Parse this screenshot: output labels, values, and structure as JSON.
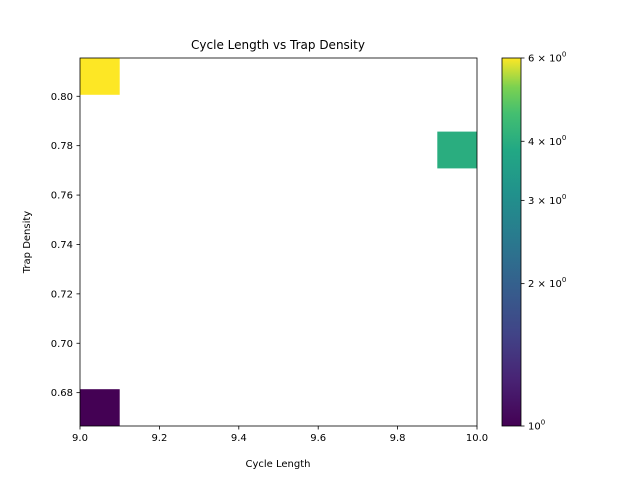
{
  "chart_data": {
    "type": "heatmap",
    "title": "Cycle Length vs Trap Density",
    "xlabel": "Cycle Length",
    "ylabel": "Trap Density",
    "xlim": [
      9.0,
      10.0
    ],
    "ylim": [
      0.6665,
      0.8155
    ],
    "x_ticks": [
      9.0,
      9.2,
      9.4,
      9.6,
      9.8,
      10.0
    ],
    "y_ticks": [
      0.68,
      0.7,
      0.72,
      0.74,
      0.76,
      0.78,
      0.8
    ],
    "x_tick_labels": [
      "9.0",
      "9.2",
      "9.4",
      "9.6",
      "9.8",
      "10.0"
    ],
    "y_tick_labels": [
      "0.68",
      "0.70",
      "0.72",
      "0.74",
      "0.76",
      "0.78",
      "0.80"
    ],
    "bin_width": 0.1,
    "bin_height": 0.0149,
    "cells": [
      {
        "x": 9.0,
        "y": 0.6665,
        "count": 1
      },
      {
        "x": 9.9,
        "y": 0.7708,
        "count": 4
      },
      {
        "x": 9.0,
        "y": 0.8006,
        "count": 6
      }
    ],
    "colorbar": {
      "scale": "log",
      "min": 1,
      "max": 6,
      "colormap": "viridis",
      "ticks": [
        {
          "value": 1,
          "base": "10",
          "exp": "0"
        },
        {
          "value": 2,
          "base": "2 × 10",
          "exp": "0"
        },
        {
          "value": 3,
          "base": "3 × 10",
          "exp": "0"
        },
        {
          "value": 4,
          "base": "4 × 10",
          "exp": "0"
        },
        {
          "value": 6,
          "base": "6 × 10",
          "exp": "0"
        }
      ]
    },
    "colors": {
      "min": "#440154",
      "mid_low": "#2c728e",
      "mid_high": "#5ec962",
      "max": "#fde725"
    }
  }
}
